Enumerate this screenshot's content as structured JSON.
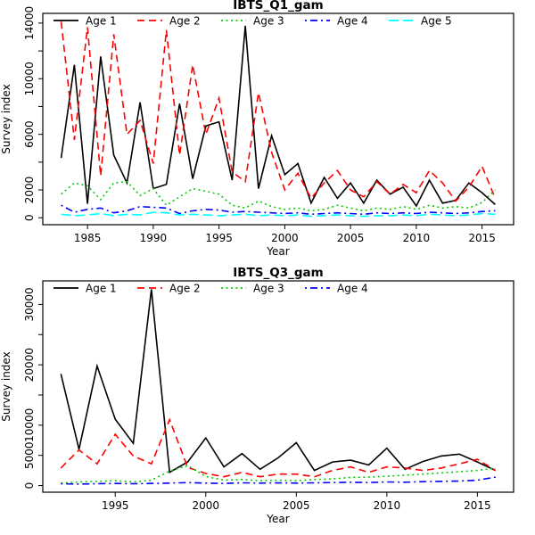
{
  "page": {
    "background": "#ffffff"
  },
  "chart_data": [
    {
      "type": "line",
      "title": "IBTS_Q1_gam",
      "xlabel": "Year",
      "ylabel": "Survey index",
      "xlim": [
        1981.6,
        2017.4
      ],
      "ylim": [
        -500,
        14700
      ],
      "grid": false,
      "legend_position": "top-left-horizontal",
      "x_ticks": [
        1985,
        1990,
        1995,
        2000,
        2005,
        2010,
        2015
      ],
      "x_tick_labels": [
        "1985",
        "1990",
        "1995",
        "2000",
        "2005",
        "2010",
        "2015"
      ],
      "y_ticks": [
        0,
        2000,
        4000,
        6000,
        8000,
        10000,
        12000,
        14000
      ],
      "y_tick_labels": [
        "0",
        "2000",
        "",
        "6000",
        "",
        "10000",
        "",
        "14000"
      ],
      "years": [
        1983,
        1984,
        1985,
        1986,
        1987,
        1988,
        1989,
        1990,
        1991,
        1992,
        1993,
        1994,
        1995,
        1996,
        1997,
        1998,
        1999,
        2000,
        2001,
        2002,
        2003,
        2004,
        2005,
        2006,
        2007,
        2008,
        2009,
        2010,
        2011,
        2012,
        2013,
        2014,
        2015,
        2016
      ],
      "series": [
        {
          "name": "Age 1",
          "color": "#000000",
          "dash": "solid",
          "values": [
            4300,
            11000,
            1000,
            11600,
            4500,
            2500,
            8300,
            2100,
            2400,
            8200,
            2800,
            6600,
            6900,
            2700,
            13800,
            2100,
            5900,
            3100,
            3900,
            1050,
            2900,
            1400,
            2500,
            1050,
            2700,
            1700,
            2200,
            850,
            2700,
            1050,
            1250,
            2500,
            1800,
            950
          ]
        },
        {
          "name": "Age 2",
          "color": "#FF0000",
          "dash": "dashed",
          "values": [
            14100,
            5600,
            13700,
            3000,
            13200,
            6000,
            7000,
            3900,
            13500,
            4500,
            11000,
            6000,
            8600,
            3300,
            2600,
            9000,
            4700,
            2000,
            3200,
            1400,
            2500,
            3400,
            2000,
            1500,
            2600,
            1700,
            2400,
            1800,
            3400,
            2500,
            1200,
            2200,
            3700,
            1400
          ]
        },
        {
          "name": "Age 3",
          "color": "#00CD00",
          "dash": "dotted",
          "values": [
            1700,
            2500,
            2300,
            1300,
            2500,
            2600,
            1600,
            2100,
            900,
            1500,
            2100,
            1900,
            1700,
            900,
            700,
            1200,
            800,
            600,
            700,
            500,
            600,
            900,
            700,
            500,
            700,
            600,
            800,
            600,
            900,
            700,
            800,
            700,
            1100,
            2000
          ]
        },
        {
          "name": "Age 4",
          "color": "#0000FF",
          "dash": "dotdash",
          "values": [
            900,
            400,
            600,
            700,
            350,
            500,
            800,
            750,
            700,
            300,
            500,
            600,
            550,
            400,
            450,
            400,
            350,
            300,
            350,
            250,
            300,
            350,
            300,
            250,
            350,
            300,
            350,
            300,
            400,
            350,
            300,
            350,
            450,
            500
          ]
        },
        {
          "name": "Age 5",
          "color": "#00FFFF",
          "dash": "longdash",
          "values": [
            250,
            150,
            200,
            300,
            150,
            250,
            200,
            400,
            350,
            200,
            250,
            200,
            150,
            200,
            250,
            150,
            200,
            150,
            200,
            100,
            150,
            200,
            150,
            100,
            150,
            150,
            200,
            150,
            250,
            200,
            150,
            200,
            300,
            250
          ]
        }
      ]
    },
    {
      "type": "line",
      "title": "IBTS_Q3_gam",
      "xlabel": "Year",
      "ylabel": "Survey index",
      "xlim": [
        1991.0,
        2017.0
      ],
      "ylim": [
        -1100,
        33900
      ],
      "grid": false,
      "legend_position": "top-left-horizontal",
      "x_ticks": [
        1995,
        2000,
        2005,
        2010,
        2015
      ],
      "x_tick_labels": [
        "1995",
        "2000",
        "2005",
        "2010",
        "2015"
      ],
      "y_ticks": [
        0,
        5000,
        10000,
        15000,
        20000,
        25000,
        30000
      ],
      "y_tick_labels": [
        "0",
        "5000",
        "10000",
        "",
        "20000",
        "",
        "30000"
      ],
      "years": [
        1992,
        1993,
        1994,
        1995,
        1996,
        1997,
        1998,
        1999,
        2000,
        2001,
        2002,
        2003,
        2004,
        2005,
        2006,
        2007,
        2008,
        2009,
        2010,
        2011,
        2012,
        2013,
        2014,
        2015,
        2016
      ],
      "series": [
        {
          "name": "Age 1",
          "color": "#000000",
          "dash": "solid",
          "values": [
            18500,
            6000,
            19800,
            11000,
            7000,
            32500,
            2200,
            3900,
            7900,
            3100,
            5300,
            2700,
            4600,
            7100,
            2500,
            3900,
            4200,
            3400,
            6200,
            2700,
            4000,
            4900,
            5200,
            3900,
            2500
          ]
        },
        {
          "name": "Age 2",
          "color": "#FF0000",
          "dash": "dashed",
          "values": [
            2900,
            5900,
            3600,
            8500,
            4900,
            3600,
            10900,
            3000,
            2000,
            1450,
            2200,
            1450,
            1900,
            1900,
            1450,
            2500,
            3100,
            2200,
            3100,
            2900,
            2500,
            2900,
            3600,
            4350,
            2500
          ]
        },
        {
          "name": "Age 3",
          "color": "#00CD00",
          "dash": "dotted",
          "values": [
            400,
            600,
            700,
            800,
            600,
            900,
            2400,
            3300,
            1500,
            900,
            1000,
            800,
            900,
            800,
            1000,
            1100,
            1350,
            1400,
            1550,
            1700,
            1900,
            2100,
            2300,
            2500,
            2900
          ]
        },
        {
          "name": "Age 4",
          "color": "#0000FF",
          "dash": "dotdash",
          "values": [
            300,
            250,
            300,
            350,
            300,
            350,
            400,
            500,
            400,
            350,
            450,
            400,
            450,
            400,
            450,
            500,
            550,
            500,
            600,
            550,
            650,
            700,
            750,
            900,
            1400
          ]
        }
      ]
    }
  ]
}
